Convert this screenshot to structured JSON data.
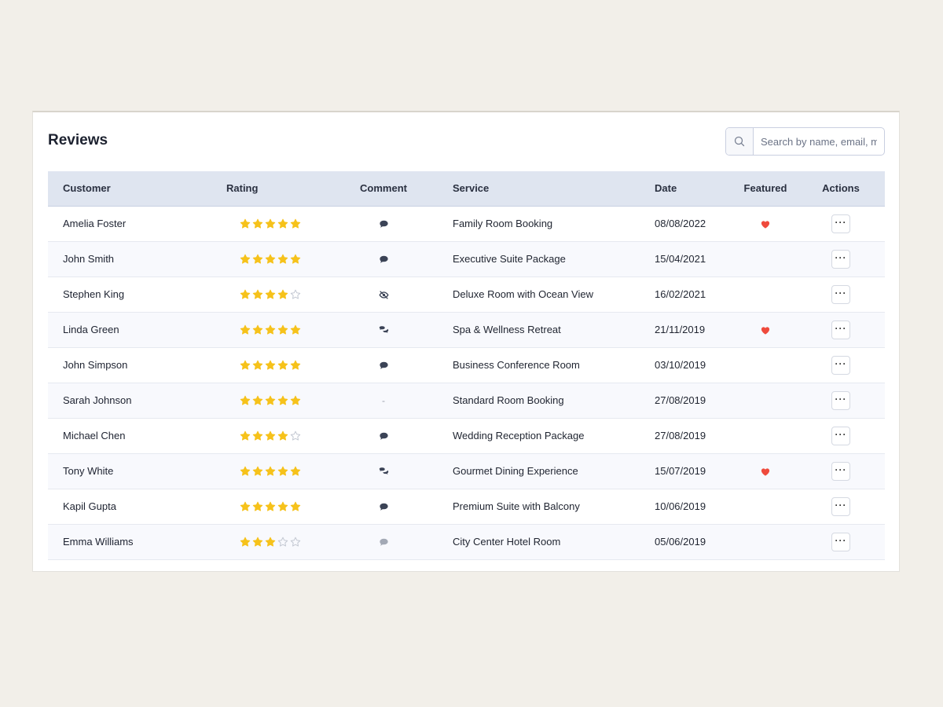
{
  "header": {
    "title": "Reviews"
  },
  "search": {
    "placeholder": "Search by name, email, m",
    "icon": "search-icon"
  },
  "table": {
    "columns": [
      "Customer",
      "Rating",
      "Comment",
      "Service",
      "Date",
      "Featured",
      "Actions"
    ],
    "rows": [
      {
        "customer": "Amelia Foster",
        "rating": 5,
        "comment": "comment",
        "service": "Family Room Booking",
        "date": "08/08/2022",
        "featured": true
      },
      {
        "customer": "John Smith",
        "rating": 5,
        "comment": "comment",
        "service": "Executive Suite Package",
        "date": "15/04/2021",
        "featured": false
      },
      {
        "customer": "Stephen King",
        "rating": 4,
        "comment": "hidden",
        "service": "Deluxe Room with Ocean View",
        "date": "16/02/2021",
        "featured": false
      },
      {
        "customer": "Linda Green",
        "rating": 5,
        "comment": "comments",
        "service": "Spa & Wellness Retreat",
        "date": "21/11/2019",
        "featured": true
      },
      {
        "customer": "John Simpson",
        "rating": 5,
        "comment": "comment",
        "service": "Business Conference Room",
        "date": "03/10/2019",
        "featured": false
      },
      {
        "customer": "Sarah Johnson",
        "rating": 5,
        "comment": "none",
        "service": "Standard Room Booking",
        "date": "27/08/2019",
        "featured": false
      },
      {
        "customer": "Michael Chen",
        "rating": 4,
        "comment": "comment",
        "service": "Wedding Reception Package",
        "date": "27/08/2019",
        "featured": false
      },
      {
        "customer": "Tony White",
        "rating": 5,
        "comment": "comments",
        "service": "Gourmet Dining Experience",
        "date": "15/07/2019",
        "featured": true
      },
      {
        "customer": "Kapil Gupta",
        "rating": 5,
        "comment": "comment",
        "service": "Premium Suite with Balcony",
        "date": "10/06/2019",
        "featured": false
      },
      {
        "customer": "Emma Williams",
        "rating": 3,
        "comment": "comment-muted",
        "service": "City Center Hotel Room",
        "date": "05/06/2019",
        "featured": false
      }
    ],
    "max_rating": 5,
    "empty_comment_text": "-",
    "actions_label": "···"
  },
  "colors": {
    "star_filled": "#f6c21b",
    "star_empty": "#c3c8d2",
    "heart": "#ef4a3c",
    "comment_icon": "#3b4356",
    "comment_muted": "#a3a9b5",
    "header_bg": "#dfe5f0"
  }
}
